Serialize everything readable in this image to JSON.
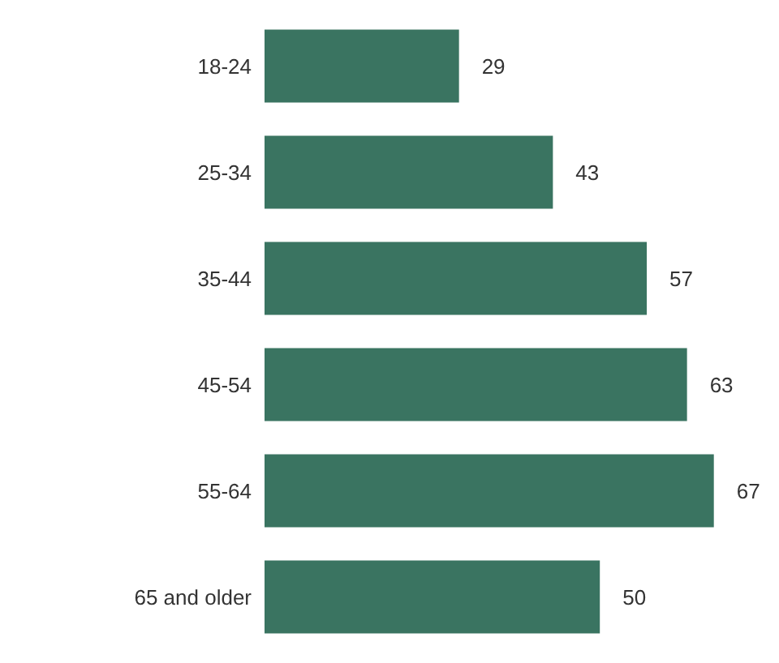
{
  "chart_data": {
    "type": "bar",
    "orientation": "horizontal",
    "categories": [
      "18-24",
      "25-34",
      "35-44",
      "45-54",
      "55-64",
      "65 and older"
    ],
    "values": [
      29,
      43,
      57,
      63,
      67,
      50
    ],
    "color": "#3a7461",
    "data_labels": true
  }
}
